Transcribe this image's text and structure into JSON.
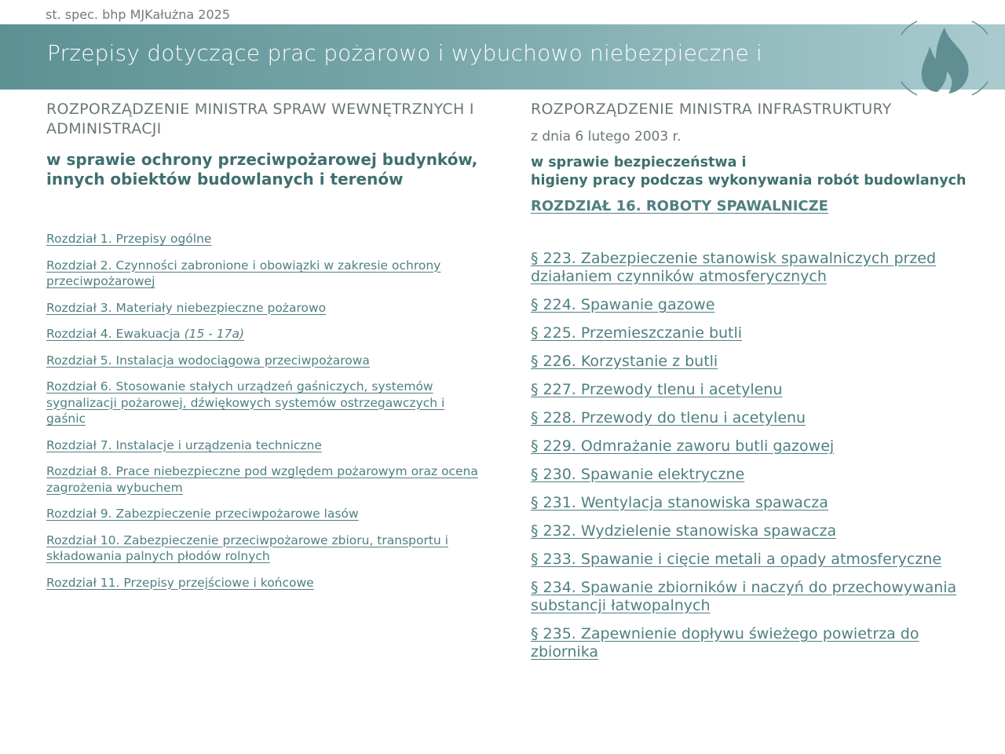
{
  "credit": "st. spec. bhp MJKałużna 2025",
  "header": {
    "title": "Przepisy dotyczące prac pożarowo i wybuchowo niebezpieczne i",
    "icon": "flame-icon",
    "colors": {
      "gradient_start": "#5c9194",
      "gradient_end": "#a9cbce",
      "accent": "#3f6f70"
    }
  },
  "left": {
    "ministry": "ROZPORZĄDZENIE MINISTRA SPRAW WEWNĘTRZNYCH I ADMINISTRACJI",
    "subject": "w sprawie ochrony przeciwpożarowej budynków, innych obiektów budowlanych i terenów",
    "links": [
      {
        "label": "Rozdział 1. Przepisy ogólne"
      },
      {
        "label": "Rozdział 2. Czynności zabronione i obowiązki w zakresie ochrony przeciwpożarowej"
      },
      {
        "label": "Rozdział 3. Materiały niebezpieczne pożarowo"
      },
      {
        "label": "Rozdział 4. Ewakuacja ",
        "suffix": "(15 - 17a)"
      },
      {
        "label": "Rozdział 5. Instalacja wodociągowa przeciwpożarowa"
      },
      {
        "label": "Rozdział 6. Stosowanie stałych urządzeń gaśniczych, systemów sygnalizacji pożarowej, dźwiękowych systemów ostrzegawczych i gaśnic"
      },
      {
        "label": "Rozdział 7. Instalacje i urządzenia techniczne"
      },
      {
        "label": "Rozdział 8. Prace niebezpieczne pod względem pożarowym oraz ocena zagrożenia wybuchem"
      },
      {
        "label": "Rozdział 9. Zabezpieczenie przeciwpożarowe lasów"
      },
      {
        "label": "Rozdział 10. Zabezpieczenie przeciwpożarowe zbioru, transportu i składowania palnych płodów rolnych"
      },
      {
        "label": "Rozdział 11. Przepisy przejściowe i końcowe"
      }
    ]
  },
  "right": {
    "ministry": "ROZPORZĄDZENIE MINISTRA INFRASTRUKTURY",
    "date": "z dnia 6 lutego 2003 r.",
    "subject_line1": "w sprawie bezpieczeństwa i",
    "subject_line2": "higieny pracy podczas wykonywania robót budowlanych",
    "chapter": "ROZDZIAŁ 16. ROBOTY SPAWALNICZE",
    "links": [
      {
        "label": "§ 223. Zabezpieczenie stanowisk spawalniczych przed działaniem czynników atmosferycznych"
      },
      {
        "label": "§ 224. Spawanie gazowe"
      },
      {
        "label": "§ 225. Przemieszczanie butli"
      },
      {
        "label": "§ 226. Korzystanie z butli"
      },
      {
        "label": "§ 227. Przewody tlenu i acetylenu"
      },
      {
        "label": "§ 228. Przewody do tlenu i acetylenu"
      },
      {
        "label": "§ 229. Odmrażanie zaworu butli gazowej"
      },
      {
        "label": "§ 230. Spawanie elektryczne"
      },
      {
        "label": "§ 231. Wentylacja stanowiska spawacza"
      },
      {
        "label": "§ 232. Wydzielenie stanowiska spawacza"
      },
      {
        "label": "§ 233. Spawanie i cięcie metali a opady atmosferyczne"
      },
      {
        "label": "§ 234. Spawanie zbiorników i naczyń do przechowywania substancji łatwopalnych"
      },
      {
        "label": "§ 235. Zapewnienie dopływu świeżego powietrza do zbiornika"
      }
    ]
  }
}
